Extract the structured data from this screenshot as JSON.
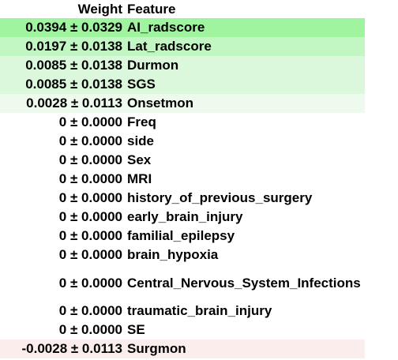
{
  "header": {
    "weight": "Weight",
    "feature": "Feature"
  },
  "rows": [
    {
      "weight": "0.0394 ± 0.0329",
      "feature": "AI_radscore",
      "bg": "#a0f4a0"
    },
    {
      "weight": "0.0197 ± 0.0138",
      "feature": "Lat_radscore",
      "bg": "#c2f6c2"
    },
    {
      "weight": "0.0085 ± 0.0138",
      "feature": "Durmon",
      "bg": "#dcf8dc"
    },
    {
      "weight": "0.0085 ± 0.0138",
      "feature": "SGS",
      "bg": "#dcf8dc"
    },
    {
      "weight": "0.0028 ± 0.0113",
      "feature": "Onsetmon",
      "bg": "#edfaed"
    },
    {
      "weight": "0 ± 0.0000",
      "feature": "Freq",
      "bg": "#ffffff"
    },
    {
      "weight": "0 ± 0.0000",
      "feature": "side",
      "bg": "#ffffff"
    },
    {
      "weight": "0 ± 0.0000",
      "feature": "Sex",
      "bg": "#ffffff"
    },
    {
      "weight": "0 ± 0.0000",
      "feature": "MRI",
      "bg": "#ffffff"
    },
    {
      "weight": "0 ± 0.0000",
      "feature": "history_of_previous_surgery",
      "bg": "#ffffff"
    },
    {
      "weight": "0 ± 0.0000",
      "feature": "early_brain_injury",
      "bg": "#ffffff"
    },
    {
      "weight": "0 ± 0.0000",
      "feature": "familial_epilepsy",
      "bg": "#ffffff"
    },
    {
      "weight": "0 ± 0.0000",
      "feature": "brain_hypoxia",
      "bg": "#ffffff"
    },
    {
      "weight": "0 ± 0.0000",
      "feature": "Central_Nervous_System_Infections",
      "bg": "#ffffff"
    },
    {
      "weight": "0 ± 0.0000",
      "feature": "traumatic_brain_injury",
      "bg": "#ffffff"
    },
    {
      "weight": "0 ± 0.0000",
      "feature": "SE",
      "bg": "#ffffff"
    },
    {
      "weight": "-0.0028 ± 0.0113",
      "feature": "Surgmon",
      "bg": "#fceded"
    }
  ]
}
